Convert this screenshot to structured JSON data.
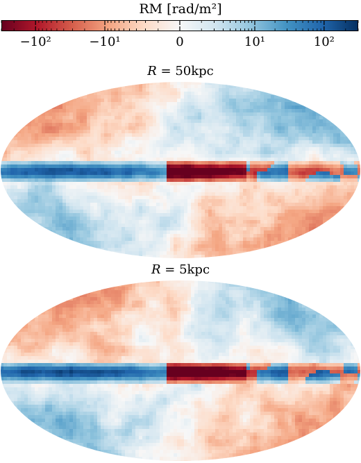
{
  "chart_data": {
    "type": "heatmap",
    "colorbar": {
      "title": "RM [rad/m²]",
      "scale": "symmetric-log",
      "range": [
        -300,
        300
      ],
      "tick_labels": [
        "−10²",
        "−10¹",
        "0",
        "10¹",
        "10²"
      ],
      "tick_values": [
        -100,
        -10,
        0,
        10,
        100
      ],
      "colormap": [
        "#67001f",
        "#b2182b",
        "#d6604d",
        "#f4a582",
        "#fddbc7",
        "#f7f7f7",
        "#d1e5f0",
        "#92c5de",
        "#4393c3",
        "#2166ac",
        "#053061"
      ]
    },
    "panels": [
      {
        "title_var": "R",
        "title_eq": " = ",
        "title_val": "50kpc",
        "projection": "Mollweide"
      },
      {
        "title_var": "R",
        "title_eq": " = ",
        "title_val": "5kpc",
        "projection": "Mollweide"
      }
    ]
  }
}
